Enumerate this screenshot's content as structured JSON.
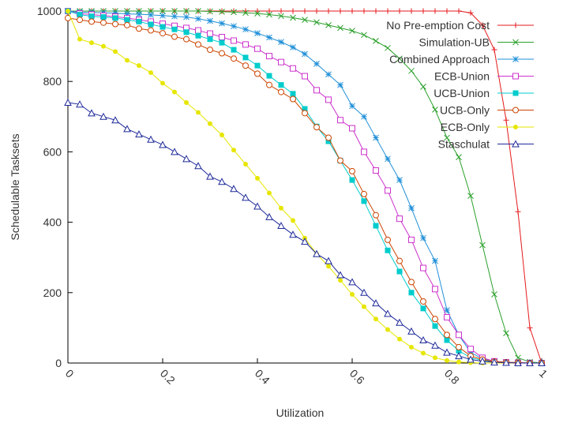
{
  "chart_data": {
    "type": "line",
    "title": "",
    "xlabel": "Utilization",
    "ylabel": "Schedulable Tasksets",
    "xlim": [
      0,
      1
    ],
    "ylim": [
      0,
      1000
    ],
    "x_ticks": [
      0,
      0.2,
      0.4,
      0.6,
      0.8,
      1
    ],
    "x_tick_labels": [
      "0",
      "0.2",
      "0.4",
      "0.6",
      "0.8",
      "1"
    ],
    "y_ticks": [
      0,
      200,
      400,
      600,
      800,
      1000
    ],
    "y_tick_labels": [
      "0",
      "200",
      "400",
      "600",
      "800",
      "1000"
    ],
    "grid": false,
    "legend_position": "top-right",
    "x": [
      0,
      0.025,
      0.05,
      0.075,
      0.1,
      0.125,
      0.15,
      0.175,
      0.2,
      0.225,
      0.25,
      0.275,
      0.3,
      0.325,
      0.35,
      0.375,
      0.4,
      0.425,
      0.45,
      0.475,
      0.5,
      0.525,
      0.55,
      0.575,
      0.6,
      0.625,
      0.65,
      0.675,
      0.7,
      0.725,
      0.75,
      0.775,
      0.8,
      0.825,
      0.85,
      0.875,
      0.9,
      0.925,
      0.95,
      0.975,
      1
    ],
    "series": [
      {
        "name": "No Pre-emption Cost",
        "color": "#e41a1c",
        "marker": "plus",
        "values": [
          1000,
          1000,
          1000,
          1000,
          1000,
          1000,
          1000,
          1000,
          1000,
          1000,
          1000,
          1000,
          1000,
          1000,
          1000,
          1000,
          1000,
          1000,
          1000,
          1000,
          1000,
          1000,
          1000,
          1000,
          1000,
          1000,
          1000,
          1000,
          1000,
          1000,
          1000,
          1000,
          1000,
          1000,
          995,
          960,
          890,
          690,
          430,
          100,
          0
        ]
      },
      {
        "name": "Simulation-UB",
        "color": "#2ca02c",
        "marker": "x",
        "values": [
          1000,
          1000,
          1000,
          1000,
          1000,
          1000,
          1000,
          1000,
          1000,
          1000,
          1000,
          1000,
          999,
          998,
          997,
          995,
          993,
          990,
          986,
          981,
          975,
          968,
          960,
          952,
          944,
          932,
          915,
          895,
          865,
          830,
          785,
          720,
          640,
          585,
          475,
          335,
          195,
          85,
          15,
          3,
          0
        ]
      },
      {
        "name": "Combined Approach",
        "color": "#1f8fd8",
        "marker": "star",
        "values": [
          1000,
          997,
          996,
          995,
          994,
          992,
          991,
          989,
          987,
          985,
          983,
          978,
          972,
          965,
          957,
          948,
          937,
          925,
          912,
          897,
          878,
          850,
          820,
          790,
          730,
          700,
          640,
          580,
          520,
          440,
          355,
          290,
          150,
          80,
          30,
          12,
          4,
          2,
          1,
          0,
          0
        ]
      },
      {
        "name": "ECB-Union",
        "color": "#cc33cc",
        "marker": "square-open",
        "values": [
          1000,
          993,
          990,
          987,
          984,
          980,
          975,
          970,
          964,
          958,
          952,
          945,
          936,
          926,
          916,
          905,
          893,
          872,
          855,
          837,
          815,
          775,
          748,
          690,
          667,
          600,
          547,
          490,
          410,
          350,
          270,
          210,
          130,
          80,
          40,
          15,
          5,
          2,
          1,
          0,
          0
        ]
      },
      {
        "name": "UCB-Union",
        "color": "#00cccc",
        "marker": "square-filled",
        "values": [
          1000,
          990,
          985,
          983,
          980,
          975,
          970,
          962,
          955,
          948,
          940,
          930,
          920,
          910,
          890,
          868,
          845,
          816,
          790,
          765,
          722,
          672,
          630,
          575,
          520,
          460,
          390,
          320,
          260,
          200,
          155,
          105,
          65,
          35,
          15,
          8,
          3,
          1,
          0,
          0,
          0
        ]
      },
      {
        "name": "UCB-Only",
        "color": "#cc4400",
        "marker": "circle-open",
        "values": [
          980,
          975,
          970,
          967,
          963,
          960,
          950,
          945,
          937,
          927,
          920,
          905,
          890,
          880,
          865,
          845,
          822,
          790,
          770,
          750,
          710,
          670,
          640,
          575,
          545,
          480,
          420,
          350,
          290,
          230,
          175,
          125,
          80,
          45,
          20,
          10,
          4,
          2,
          1,
          0,
          0
        ]
      },
      {
        "name": "ECB-Only",
        "color": "#e6e600",
        "marker": "circle-filled",
        "values": [
          1000,
          920,
          910,
          900,
          885,
          860,
          845,
          825,
          795,
          770,
          740,
          712,
          680,
          648,
          605,
          565,
          525,
          483,
          440,
          405,
          355,
          310,
          275,
          235,
          195,
          160,
          125,
          95,
          68,
          45,
          28,
          15,
          7,
          3,
          1,
          0,
          0,
          0,
          0,
          0,
          0
        ]
      },
      {
        "name": "Staschulat",
        "color": "#1f2a99",
        "marker": "triangle",
        "values": [
          740,
          735,
          710,
          700,
          690,
          665,
          650,
          635,
          620,
          600,
          580,
          560,
          530,
          515,
          495,
          470,
          445,
          415,
          390,
          365,
          345,
          310,
          290,
          250,
          230,
          200,
          170,
          140,
          115,
          90,
          65,
          50,
          30,
          20,
          10,
          5,
          2,
          1,
          0,
          0,
          0
        ]
      }
    ]
  }
}
